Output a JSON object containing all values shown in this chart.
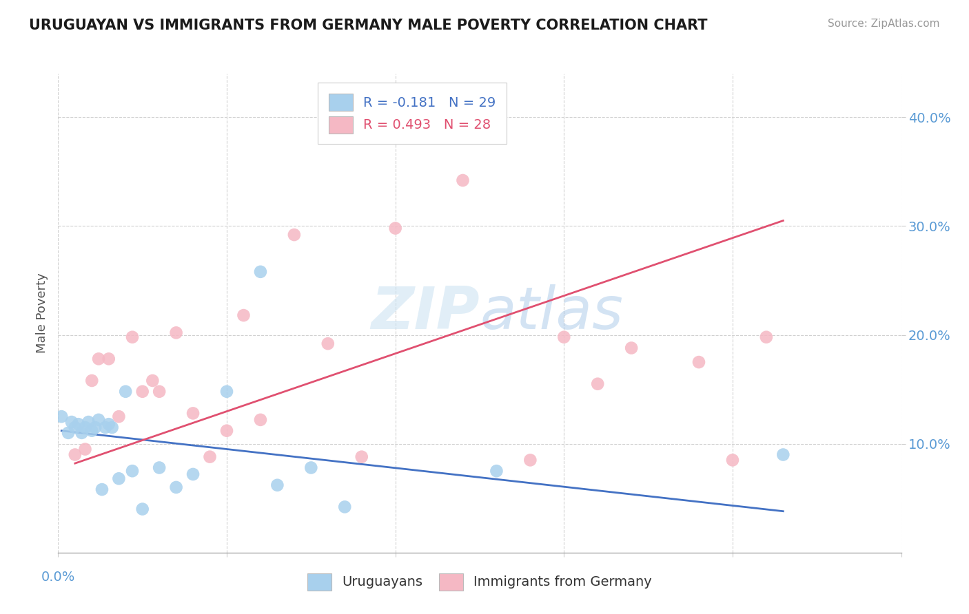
{
  "title": "URUGUAYAN VS IMMIGRANTS FROM GERMANY MALE POVERTY CORRELATION CHART",
  "source": "Source: ZipAtlas.com",
  "ylabel": "Male Poverty",
  "y_ticks": [
    0.1,
    0.2,
    0.3,
    0.4
  ],
  "y_tick_labels": [
    "10.0%",
    "20.0%",
    "30.0%",
    "40.0%"
  ],
  "x_lim": [
    0.0,
    0.25
  ],
  "y_lim": [
    0.0,
    0.44
  ],
  "watermark": "ZIPatlas",
  "legend_R1": "R = -0.181",
  "legend_N1": "N = 29",
  "legend_R2": "R = 0.493",
  "legend_N2": "N = 28",
  "blue_color": "#a8d0ed",
  "pink_color": "#f5b8c4",
  "blue_line_color": "#4472c4",
  "pink_line_color": "#e05070",
  "uruguayan_x": [
    0.001,
    0.003,
    0.004,
    0.005,
    0.006,
    0.007,
    0.008,
    0.009,
    0.01,
    0.011,
    0.012,
    0.013,
    0.014,
    0.015,
    0.016,
    0.018,
    0.02,
    0.022,
    0.025,
    0.03,
    0.035,
    0.04,
    0.05,
    0.06,
    0.065,
    0.075,
    0.085,
    0.13,
    0.215
  ],
  "uruguayan_y": [
    0.125,
    0.11,
    0.12,
    0.115,
    0.118,
    0.11,
    0.115,
    0.12,
    0.112,
    0.115,
    0.122,
    0.058,
    0.115,
    0.118,
    0.115,
    0.068,
    0.148,
    0.075,
    0.04,
    0.078,
    0.06,
    0.072,
    0.148,
    0.258,
    0.062,
    0.078,
    0.042,
    0.075,
    0.09
  ],
  "germany_x": [
    0.005,
    0.008,
    0.01,
    0.012,
    0.015,
    0.018,
    0.022,
    0.025,
    0.028,
    0.03,
    0.035,
    0.04,
    0.045,
    0.05,
    0.055,
    0.06,
    0.07,
    0.08,
    0.09,
    0.1,
    0.12,
    0.14,
    0.15,
    0.16,
    0.17,
    0.19,
    0.2,
    0.21
  ],
  "germany_y": [
    0.09,
    0.095,
    0.158,
    0.178,
    0.178,
    0.125,
    0.198,
    0.148,
    0.158,
    0.148,
    0.202,
    0.128,
    0.088,
    0.112,
    0.218,
    0.122,
    0.292,
    0.192,
    0.088,
    0.298,
    0.342,
    0.085,
    0.198,
    0.155,
    0.188,
    0.175,
    0.085,
    0.198
  ],
  "blue_line_x0": 0.001,
  "blue_line_x1": 0.215,
  "blue_line_y0": 0.112,
  "blue_line_y1": 0.038,
  "pink_line_x0": 0.005,
  "pink_line_x1": 0.215,
  "pink_line_y0": 0.082,
  "pink_line_y1": 0.305
}
